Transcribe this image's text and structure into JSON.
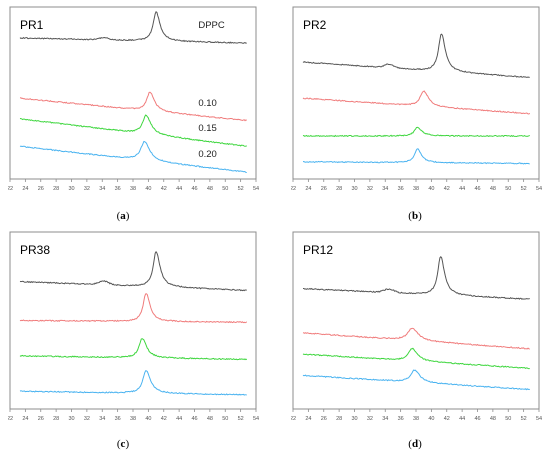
{
  "chart_data": [
    {
      "type": "line",
      "panel_label": "PR1",
      "caption": "a",
      "x_ticks": [
        22,
        24,
        26,
        28,
        30,
        32,
        34,
        36,
        38,
        40,
        42,
        44,
        46,
        48,
        50,
        52,
        54
      ],
      "xlim": [
        22,
        54
      ],
      "trace_labels": [
        "DPPC",
        "0.10",
        "0.15",
        "0.20"
      ],
      "series": [
        {
          "color": "#555555",
          "baseline_start": 0.18,
          "baseline_end": 0.21,
          "peak_x": 41.0,
          "peak_height": 0.17,
          "peak_width": 0.45,
          "bump_x": 34.2,
          "bump_height": 0.012
        },
        {
          "color": "#f07c7c",
          "baseline_start": 0.53,
          "baseline_end": 0.66,
          "peak_x": 40.2,
          "peak_height": 0.11,
          "peak_width": 0.5
        },
        {
          "color": "#3ed63e",
          "baseline_start": 0.65,
          "baseline_end": 0.81,
          "peak_x": 39.7,
          "peak_height": 0.11,
          "peak_width": 0.55
        },
        {
          "color": "#4ab3f0",
          "baseline_start": 0.81,
          "baseline_end": 0.96,
          "peak_x": 39.5,
          "peak_height": 0.11,
          "peak_width": 0.6
        }
      ]
    },
    {
      "type": "line",
      "panel_label": "PR2",
      "caption": "b",
      "x_ticks": [
        22,
        24,
        26,
        28,
        30,
        32,
        34,
        36,
        38,
        40,
        42,
        44,
        46,
        48,
        50,
        52,
        54
      ],
      "xlim": [
        22,
        54
      ],
      "series": [
        {
          "color": "#555555",
          "baseline_start": 0.32,
          "baseline_end": 0.41,
          "peak_x": 41.3,
          "peak_height": 0.22,
          "peak_width": 0.45,
          "bump_x": 34.5,
          "bump_height": 0.02
        },
        {
          "color": "#f07c7c",
          "baseline_start": 0.53,
          "baseline_end": 0.62,
          "peak_x": 39.0,
          "peak_height": 0.09,
          "peak_width": 0.55
        },
        {
          "color": "#3ed63e",
          "baseline_start": 0.75,
          "baseline_end": 0.75,
          "peak_x": 38.2,
          "peak_height": 0.05,
          "peak_width": 0.5
        },
        {
          "color": "#4ab3f0",
          "baseline_start": 0.9,
          "baseline_end": 0.91,
          "peak_x": 38.2,
          "peak_height": 0.08,
          "peak_width": 0.45
        }
      ]
    },
    {
      "type": "line",
      "panel_label": "PR38",
      "caption": "c",
      "x_ticks": [
        22,
        24,
        26,
        28,
        30,
        32,
        34,
        36,
        38,
        40,
        42,
        44,
        46,
        48,
        50,
        52,
        54
      ],
      "xlim": [
        22,
        54
      ],
      "series": [
        {
          "color": "#555555",
          "baseline_start": 0.28,
          "baseline_end": 0.33,
          "peak_x": 41.0,
          "peak_height": 0.2,
          "peak_width": 0.45,
          "bump_x": 34.2,
          "bump_height": 0.02
        },
        {
          "color": "#f07c7c",
          "baseline_start": 0.5,
          "baseline_end": 0.51,
          "peak_x": 39.7,
          "peak_height": 0.16,
          "peak_width": 0.45
        },
        {
          "color": "#3ed63e",
          "baseline_start": 0.7,
          "baseline_end": 0.72,
          "peak_x": 39.2,
          "peak_height": 0.11,
          "peak_width": 0.5
        },
        {
          "color": "#4ab3f0",
          "baseline_start": 0.9,
          "baseline_end": 0.92,
          "peak_x": 39.7,
          "peak_height": 0.13,
          "peak_width": 0.5
        }
      ]
    },
    {
      "type": "line",
      "panel_label": "PR12",
      "caption": "d",
      "x_ticks": [
        22,
        24,
        26,
        28,
        30,
        32,
        34,
        36,
        38,
        40,
        42,
        44,
        46,
        48,
        50,
        52,
        54
      ],
      "xlim": [
        22,
        54
      ],
      "series": [
        {
          "color": "#555555",
          "baseline_start": 0.32,
          "baseline_end": 0.38,
          "peak_x": 41.2,
          "peak_height": 0.22,
          "peak_width": 0.45,
          "bump_x": 34.5,
          "bump_height": 0.02
        },
        {
          "color": "#f07c7c",
          "baseline_start": 0.57,
          "baseline_end": 0.66,
          "peak_x": 37.5,
          "peak_height": 0.07,
          "peak_width": 0.7
        },
        {
          "color": "#3ed63e",
          "baseline_start": 0.69,
          "baseline_end": 0.77,
          "peak_x": 37.5,
          "peak_height": 0.07,
          "peak_width": 0.6
        },
        {
          "color": "#4ab3f0",
          "baseline_start": 0.81,
          "baseline_end": 0.89,
          "peak_x": 37.8,
          "peak_height": 0.07,
          "peak_width": 0.6
        }
      ]
    }
  ]
}
